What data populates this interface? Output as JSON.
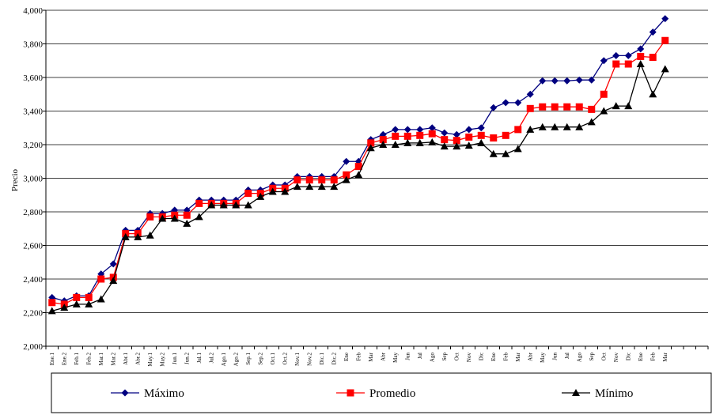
{
  "chart_data": {
    "type": "line",
    "y_label": "Precio",
    "categories": [
      "Ene.1",
      "Ene.2",
      "Feb.1",
      "Feb.2",
      "Mar.1",
      "Mar.2",
      "Abr.1",
      "Abr.2",
      "May.1",
      "May.2",
      "Jun.1",
      "Jun.2",
      "Jul.1",
      "Jul.2",
      "Ago.1",
      "Ago.2",
      "Sep.1",
      "Sep.2",
      "Oct.1",
      "Oct.2",
      "Nov.1",
      "Nov.2",
      "Dic.1",
      "Dic.2",
      "Ene",
      "Feb",
      "Mar",
      "Abr",
      "May",
      "Jun",
      "Jul",
      "Ago",
      "Sep",
      "Oct",
      "Nov",
      "Dic",
      "Ene",
      "Feb",
      "Mar",
      "Abr",
      "May",
      "Jun",
      "Jul",
      "Ago",
      "Sep",
      "Oct",
      "Nov",
      "Dic",
      "Ene",
      "Feb",
      "Mar",
      null,
      null,
      null
    ],
    "series": [
      {
        "name": "Máximo",
        "color": "#000080",
        "marker": "diamond",
        "values": [
          2290,
          2270,
          2300,
          2300,
          2430,
          2490,
          2690,
          2690,
          2790,
          2790,
          2810,
          2810,
          2870,
          2870,
          2870,
          2870,
          2930,
          2930,
          2960,
          2960,
          3010,
          3010,
          3010,
          3010,
          3100,
          3100,
          3230,
          3260,
          3290,
          3290,
          3290,
          3300,
          3270,
          3260,
          3290,
          3300,
          3420,
          3450,
          3450,
          3500,
          3580,
          3580,
          3580,
          3585,
          3585,
          3700,
          3730,
          3730,
          3770,
          3870,
          3950,
          null,
          null,
          null
        ]
      },
      {
        "name": "Promedio",
        "color": "#ff0000",
        "marker": "square",
        "values": [
          2260,
          2250,
          2290,
          2290,
          2400,
          2410,
          2670,
          2670,
          2770,
          2770,
          2780,
          2780,
          2850,
          2850,
          2850,
          2850,
          2910,
          2910,
          2940,
          2940,
          2990,
          2990,
          2990,
          2990,
          3020,
          3070,
          3210,
          3230,
          3250,
          3250,
          3255,
          3265,
          3230,
          3225,
          3245,
          3255,
          3240,
          3255,
          3290,
          3415,
          3425,
          3425,
          3425,
          3425,
          3410,
          3500,
          3680,
          3680,
          3725,
          3720,
          3820,
          null,
          null,
          null
        ]
      },
      {
        "name": "Mínimo",
        "color": "#000000",
        "marker": "triangle",
        "values": [
          2210,
          2230,
          2250,
          2250,
          2280,
          2390,
          2650,
          2650,
          2660,
          2760,
          2760,
          2730,
          2770,
          2840,
          2840,
          2840,
          2840,
          2890,
          2920,
          2920,
          2950,
          2950,
          2950,
          2950,
          2990,
          3020,
          3180,
          3200,
          3200,
          3210,
          3210,
          3215,
          3190,
          3190,
          3195,
          3210,
          3145,
          3145,
          3175,
          3290,
          3305,
          3305,
          3305,
          3305,
          3335,
          3400,
          3430,
          3430,
          3680,
          3500,
          3650,
          null,
          null,
          null
        ]
      }
    ],
    "ylim": [
      2000,
      4000
    ],
    "yticks": [
      {
        "value": 2000,
        "label": "2,000"
      },
      {
        "value": 2200,
        "label": "2,200"
      },
      {
        "value": 2400,
        "label": "2,400"
      },
      {
        "value": 2600,
        "label": "2,600"
      },
      {
        "value": 2800,
        "label": "2,800"
      },
      {
        "value": 3000,
        "label": "3,000"
      },
      {
        "value": 3200,
        "label": "3,200"
      },
      {
        "value": 3400,
        "label": "3,400"
      },
      {
        "value": 3600,
        "label": "3,600"
      },
      {
        "value": 3800,
        "label": "3,800"
      },
      {
        "value": 4000,
        "label": "4,000"
      }
    ],
    "grid": true,
    "legend": "bottom"
  }
}
